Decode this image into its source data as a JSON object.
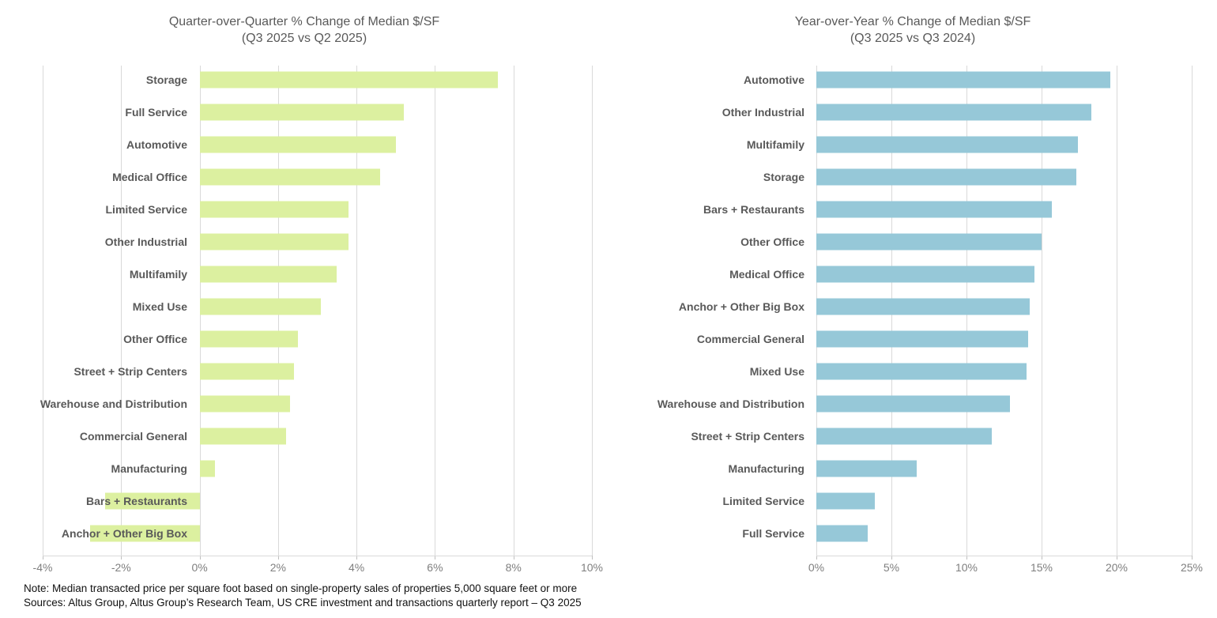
{
  "note_line1": "Note: Median transacted price per square foot based on single-property sales of properties 5,000 square feet or more",
  "note_line2": "Sources: Altus Group, Altus Group’s Research Team, US CRE investment and transactions quarterly report – Q3 2025",
  "colors": {
    "qoq_bar": "#dcf0a0",
    "yoy_bar": "#96c8d8",
    "gridline": "#d9d9d9",
    "category_label": "#595959",
    "axis_label": "#7f7f7f",
    "title": "#595959"
  },
  "chart_data": [
    {
      "type": "bar",
      "orientation": "horizontal",
      "title": "Quarter-over-Quarter % Change of Median $/SF",
      "subtitle": "(Q3 2025 vs Q2 2025)",
      "value_unit": "%",
      "xlim": [
        -4,
        10
      ],
      "tick_step": 2,
      "tick_labels": [
        "-4%",
        "-2%",
        "0%",
        "2%",
        "4%",
        "6%",
        "8%",
        "10%"
      ],
      "grid": true,
      "bar_color": "#dcf0a0",
      "categories": [
        "Storage",
        "Full Service",
        "Automotive",
        "Medical Office",
        "Limited Service",
        "Other Industrial",
        "Multifamily",
        "Mixed Use",
        "Other Office",
        "Street + Strip Centers",
        "Warehouse and Distribution",
        "Commercial General",
        "Manufacturing",
        "Bars + Restaurants",
        "Anchor + Other Big Box"
      ],
      "values": [
        7.6,
        5.2,
        5.0,
        4.6,
        3.8,
        3.8,
        3.5,
        3.1,
        2.5,
        2.4,
        2.3,
        2.2,
        0.4,
        -2.4,
        -2.8
      ]
    },
    {
      "type": "bar",
      "orientation": "horizontal",
      "title": "Year-over-Year % Change of Median $/SF",
      "subtitle": "(Q3 2025 vs Q3 2024)",
      "value_unit": "%",
      "xlim": [
        0,
        25
      ],
      "tick_step": 5,
      "tick_labels": [
        "0%",
        "5%",
        "10%",
        "15%",
        "20%",
        "25%"
      ],
      "grid": true,
      "bar_color": "#96c8d8",
      "categories": [
        "Automotive",
        "Other Industrial",
        "Multifamily",
        "Storage",
        "Bars + Restaurants",
        "Other Office",
        "Medical Office",
        "Anchor + Other Big Box",
        "Commercial General",
        "Mixed Use",
        "Warehouse and Distribution",
        "Street + Strip Centers",
        "Manufacturing",
        "Limited Service",
        "Full Service"
      ],
      "values": [
        19.6,
        18.3,
        17.4,
        17.3,
        15.7,
        15.0,
        14.5,
        14.2,
        14.1,
        14.0,
        12.9,
        11.7,
        6.7,
        3.9,
        3.4
      ]
    }
  ]
}
